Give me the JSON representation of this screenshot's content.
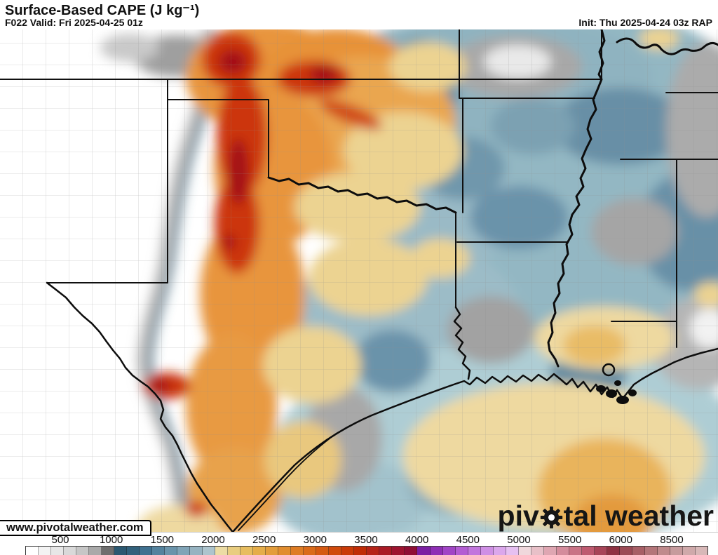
{
  "header": {
    "title": "Surface-Based CAPE (J kg⁻¹)",
    "subtitle": "F022 Valid: Fri 2025-04-25 01z",
    "init_label": "Init: Thu 2025-04-24 03z RAP"
  },
  "watermark": "www.pivotalweather.com",
  "logo": {
    "prefix": "piv",
    "middle": "tal",
    "suffix": " weather"
  },
  "colorbar": {
    "tick_labels": [
      "500",
      "1000",
      "1500",
      "2000",
      "2500",
      "3000",
      "3500",
      "4000",
      "4500",
      "5000",
      "5500",
      "6000",
      "8500"
    ],
    "tick_values": [
      500,
      1000,
      1500,
      2000,
      2500,
      3000,
      3500,
      4000,
      4500,
      5000,
      5500,
      6000,
      8500
    ],
    "segment_colors": [
      "#ffffff",
      "#f3f3f3",
      "#e7e7e7",
      "#d9d9d9",
      "#c6c6c6",
      "#a9a9a9",
      "#6e6e6e",
      "#2b5871",
      "#32617c",
      "#3f7190",
      "#54839e",
      "#6a94ab",
      "#80a4b7",
      "#96b3c1",
      "#adc4cd",
      "#ecdca4",
      "#e9cd7f",
      "#e7bd5f",
      "#e5ad49",
      "#e39d3b",
      "#e18d2f",
      "#de7c24",
      "#da6b1a",
      "#d55a12",
      "#d04a0c",
      "#c93a08",
      "#c02c06",
      "#b52418",
      "#aa1b26",
      "#9e1430",
      "#8f0e34",
      "#7b1fa2",
      "#8e2fb5",
      "#a145c6",
      "#b35cd3",
      "#c276dd",
      "#cf8fe5",
      "#dba7ec",
      "#e6c0f1",
      "#f0d8dc",
      "#e8c0c8",
      "#dfa6b2",
      "#d48c9c",
      "#ca7386",
      "#bf5a70",
      "#a84458",
      "#8f3242",
      "#9c4a55",
      "#a85f66",
      "#b47579",
      "#c08a8c",
      "#c79b9d",
      "#cfa9aa",
      "#d8b8b8"
    ]
  }
}
